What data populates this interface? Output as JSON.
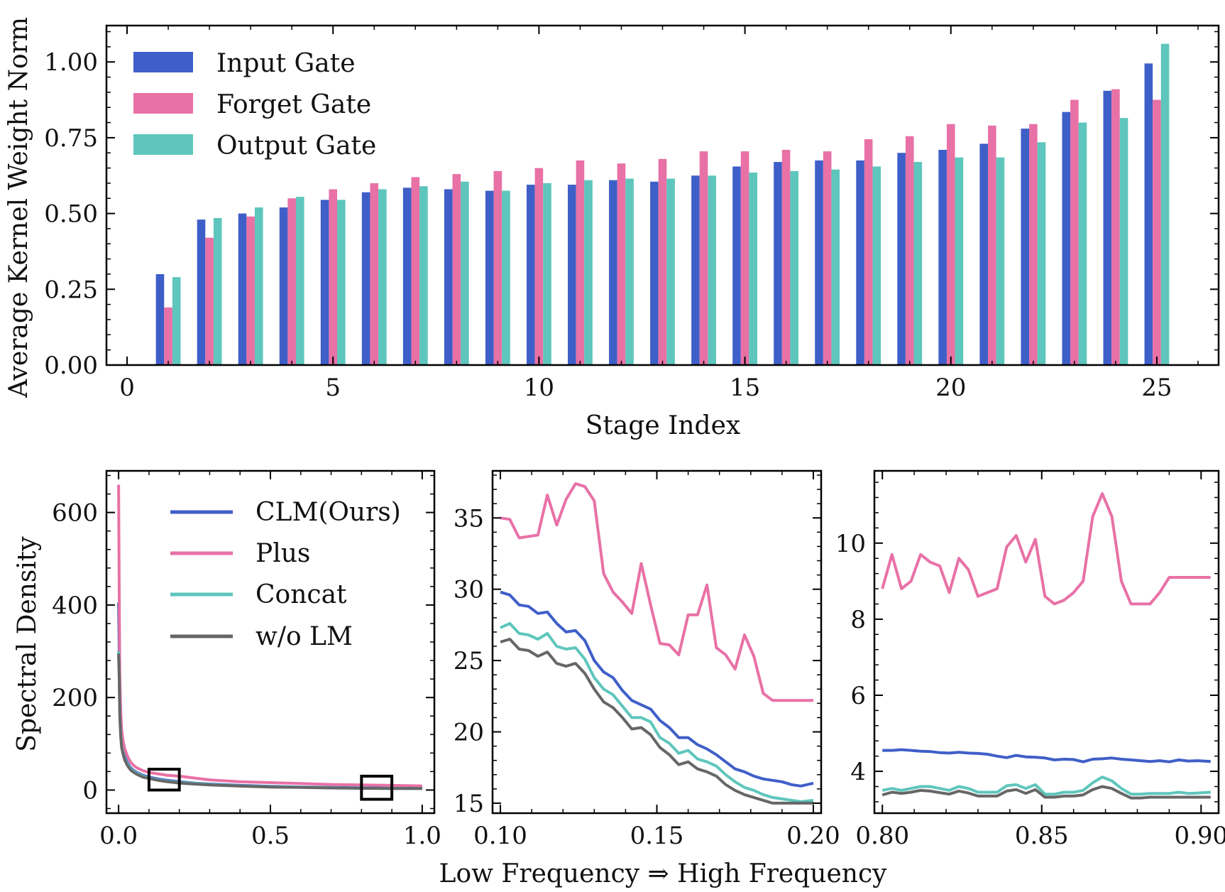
{
  "chart_data": [
    {
      "id": "top",
      "type": "bar",
      "title": "",
      "xlabel": "Stage Index",
      "ylabel": "Average Kernel Weight Norm",
      "xlim": [
        -0.5,
        26.5
      ],
      "ylim": [
        0,
        1.12
      ],
      "xticks": [
        0,
        5,
        10,
        15,
        20,
        25
      ],
      "yticks": [
        0.0,
        0.25,
        0.5,
        0.75,
        1.0
      ],
      "ytick_labels": [
        "0.00",
        "0.25",
        "0.50",
        "0.75",
        "1.00"
      ],
      "legend_position": "top-left",
      "categories": [
        1,
        2,
        3,
        4,
        5,
        6,
        7,
        8,
        9,
        10,
        11,
        12,
        13,
        14,
        15,
        16,
        17,
        18,
        19,
        20,
        21,
        22,
        23,
        24,
        25
      ],
      "series": [
        {
          "name": "Input Gate",
          "color": "#3f5fc8",
          "values": [
            0.3,
            0.48,
            0.5,
            0.52,
            0.545,
            0.57,
            0.585,
            0.58,
            0.575,
            0.595,
            0.595,
            0.61,
            0.605,
            0.625,
            0.655,
            0.67,
            0.675,
            0.675,
            0.7,
            0.71,
            0.73,
            0.78,
            0.835,
            0.905,
            0.995
          ]
        },
        {
          "name": "Forget Gate",
          "color": "#e871a6",
          "values": [
            0.19,
            0.42,
            0.49,
            0.55,
            0.58,
            0.6,
            0.62,
            0.63,
            0.64,
            0.65,
            0.675,
            0.665,
            0.68,
            0.705,
            0.705,
            0.71,
            0.705,
            0.745,
            0.755,
            0.795,
            0.79,
            0.795,
            0.875,
            0.91,
            0.875
          ]
        },
        {
          "name": "Output Gate",
          "color": "#5ec6bc",
          "values": [
            0.29,
            0.485,
            0.52,
            0.555,
            0.545,
            0.58,
            0.59,
            0.605,
            0.575,
            0.6,
            0.61,
            0.615,
            0.615,
            0.625,
            0.635,
            0.64,
            0.645,
            0.655,
            0.67,
            0.685,
            0.685,
            0.735,
            0.8,
            0.815,
            1.06
          ]
        }
      ]
    },
    {
      "id": "bottom-left",
      "type": "line",
      "xlabel": "",
      "ylabel": "Spectral Density",
      "xlim": [
        -0.04,
        1.04
      ],
      "ylim": [
        -50,
        690
      ],
      "xticks": [
        0.0,
        0.5,
        1.0
      ],
      "xtick_labels": [
        "0.0",
        "0.5",
        "1.0"
      ],
      "yticks": [
        0,
        200,
        400,
        600
      ],
      "ytick_labels": [
        "0",
        "200",
        "400",
        "600"
      ],
      "legend_position": "top-right",
      "zoom_boxes": [
        {
          "x": [
            0.1,
            0.2
          ],
          "y": [
            0,
            45
          ]
        },
        {
          "x": [
            0.8,
            0.9
          ],
          "y": [
            -20,
            30
          ]
        }
      ],
      "series": [
        {
          "name": "CLM(Ours)",
          "color": "#3f5fc8",
          "x": [
            0.0,
            0.002,
            0.004,
            0.007,
            0.01,
            0.015,
            0.02,
            0.03,
            0.04,
            0.05,
            0.06,
            0.08,
            0.1,
            0.13,
            0.16,
            0.2,
            0.25,
            0.3,
            0.4,
            0.5,
            0.6,
            0.7,
            0.8,
            0.9,
            1.0
          ],
          "y": [
            405,
            300,
            180,
            130,
            100,
            85,
            72,
            58,
            48,
            42,
            38,
            32,
            28,
            24,
            21,
            18,
            15,
            13,
            10,
            8,
            6.5,
            5.5,
            4.8,
            4.2,
            4.0
          ]
        },
        {
          "name": "Plus",
          "color": "#e871a6",
          "x": [
            0.0,
            0.002,
            0.004,
            0.007,
            0.01,
            0.015,
            0.02,
            0.03,
            0.04,
            0.05,
            0.06,
            0.08,
            0.1,
            0.13,
            0.16,
            0.2,
            0.25,
            0.3,
            0.4,
            0.5,
            0.6,
            0.7,
            0.8,
            0.9,
            1.0
          ],
          "y": [
            660,
            420,
            250,
            170,
            130,
            105,
            90,
            72,
            60,
            53,
            48,
            42,
            38,
            35,
            32,
            30,
            26,
            22,
            18,
            16,
            14,
            12,
            11,
            10,
            9
          ]
        },
        {
          "name": "Concat",
          "color": "#5ec6bc",
          "x": [
            0.0,
            0.002,
            0.004,
            0.007,
            0.01,
            0.015,
            0.02,
            0.03,
            0.04,
            0.05,
            0.06,
            0.08,
            0.1,
            0.13,
            0.16,
            0.2,
            0.25,
            0.3,
            0.4,
            0.5,
            0.6,
            0.7,
            0.8,
            0.9,
            1.0
          ],
          "y": [
            300,
            250,
            165,
            120,
            95,
            80,
            68,
            55,
            45,
            40,
            36,
            30,
            26,
            22,
            19,
            16,
            14,
            12,
            9,
            7,
            6,
            5,
            4,
            3.5,
            3.3
          ]
        },
        {
          "name": "w/o LM",
          "color": "#666666",
          "x": [
            0.0,
            0.002,
            0.004,
            0.007,
            0.01,
            0.015,
            0.02,
            0.03,
            0.04,
            0.05,
            0.06,
            0.08,
            0.1,
            0.13,
            0.16,
            0.2,
            0.25,
            0.3,
            0.4,
            0.5,
            0.6,
            0.7,
            0.8,
            0.9,
            1.0
          ],
          "y": [
            295,
            240,
            160,
            115,
            92,
            77,
            65,
            52,
            43,
            38,
            34,
            28,
            25,
            21,
            18,
            15,
            13,
            11,
            8.5,
            6.5,
            5.5,
            4.5,
            3.8,
            3.4,
            3.2
          ]
        }
      ]
    },
    {
      "id": "bottom-middle",
      "type": "line",
      "xlabel": "",
      "ylabel": "",
      "xlim": [
        0.0975,
        0.2025
      ],
      "ylim": [
        14.3,
        38.3
      ],
      "xticks": [
        0.1,
        0.15,
        0.2
      ],
      "xtick_labels": [
        "0.10",
        "0.15",
        "0.20"
      ],
      "yticks": [
        15,
        20,
        25,
        30,
        35
      ],
      "ytick_labels": [
        "15",
        "20",
        "25",
        "30",
        "35"
      ],
      "series": [
        {
          "name": "CLM(Ours)",
          "color": "#3f5fc8",
          "x": [
            0.1,
            0.103,
            0.106,
            0.109,
            0.112,
            0.115,
            0.118,
            0.121,
            0.124,
            0.127,
            0.13,
            0.133,
            0.136,
            0.139,
            0.142,
            0.145,
            0.148,
            0.151,
            0.154,
            0.157,
            0.16,
            0.163,
            0.166,
            0.169,
            0.172,
            0.175,
            0.178,
            0.181,
            0.184,
            0.187,
            0.19,
            0.193,
            0.196,
            0.2
          ],
          "y": [
            29.8,
            29.6,
            28.9,
            28.8,
            28.3,
            28.4,
            27.6,
            27.0,
            27.1,
            26.4,
            25.0,
            24.2,
            23.8,
            22.9,
            22.2,
            21.9,
            21.6,
            20.8,
            20.3,
            19.6,
            19.6,
            19.1,
            18.8,
            18.4,
            17.9,
            17.4,
            17.2,
            16.9,
            16.7,
            16.6,
            16.5,
            16.3,
            16.2,
            16.4
          ]
        },
        {
          "name": "Plus",
          "color": "#e871a6",
          "x": [
            0.1,
            0.103,
            0.106,
            0.109,
            0.112,
            0.115,
            0.118,
            0.121,
            0.124,
            0.127,
            0.13,
            0.133,
            0.136,
            0.139,
            0.142,
            0.145,
            0.148,
            0.151,
            0.154,
            0.157,
            0.16,
            0.163,
            0.166,
            0.169,
            0.172,
            0.175,
            0.178,
            0.181,
            0.184,
            0.187,
            0.19,
            0.193,
            0.196,
            0.2
          ],
          "y": [
            35.0,
            34.9,
            33.6,
            33.7,
            33.8,
            36.6,
            34.5,
            36.3,
            37.4,
            37.2,
            36.2,
            31.1,
            29.8,
            29.1,
            28.3,
            31.8,
            28.9,
            26.2,
            26.1,
            25.4,
            28.2,
            28.2,
            30.3,
            25.9,
            25.4,
            24.4,
            26.8,
            25.3,
            22.7,
            22.2,
            22.2,
            22.2,
            22.2,
            22.2
          ]
        },
        {
          "name": "Concat",
          "color": "#5ec6bc",
          "x": [
            0.1,
            0.103,
            0.106,
            0.109,
            0.112,
            0.115,
            0.118,
            0.121,
            0.124,
            0.127,
            0.13,
            0.133,
            0.136,
            0.139,
            0.142,
            0.145,
            0.148,
            0.151,
            0.154,
            0.157,
            0.16,
            0.163,
            0.166,
            0.169,
            0.172,
            0.175,
            0.178,
            0.181,
            0.184,
            0.187,
            0.19,
            0.193,
            0.196,
            0.2
          ],
          "y": [
            27.3,
            27.6,
            26.9,
            26.8,
            26.5,
            26.9,
            26.0,
            25.8,
            25.9,
            25.1,
            23.8,
            23.0,
            22.6,
            21.8,
            21.0,
            21.0,
            20.7,
            19.6,
            19.2,
            18.5,
            18.7,
            18.1,
            17.9,
            17.6,
            17.0,
            16.5,
            16.1,
            15.9,
            15.6,
            15.4,
            15.3,
            15.2,
            15.1,
            15.2
          ]
        },
        {
          "name": "w/o LM",
          "color": "#666666",
          "x": [
            0.1,
            0.103,
            0.106,
            0.109,
            0.112,
            0.115,
            0.118,
            0.121,
            0.124,
            0.127,
            0.13,
            0.133,
            0.136,
            0.139,
            0.142,
            0.145,
            0.148,
            0.151,
            0.154,
            0.157,
            0.16,
            0.163,
            0.166,
            0.169,
            0.172,
            0.175,
            0.178,
            0.181,
            0.184,
            0.187,
            0.19,
            0.193,
            0.196,
            0.2
          ],
          "y": [
            26.3,
            26.5,
            25.8,
            25.7,
            25.3,
            25.6,
            24.8,
            24.6,
            24.8,
            24.1,
            23.0,
            22.1,
            21.7,
            21.0,
            20.2,
            20.3,
            19.8,
            18.9,
            18.4,
            17.7,
            17.9,
            17.4,
            17.2,
            16.9,
            16.3,
            15.9,
            15.6,
            15.4,
            15.2,
            15.0,
            15.0,
            15.0,
            15.0,
            15.0
          ]
        }
      ]
    },
    {
      "id": "bottom-right",
      "type": "line",
      "xlabel": "Low Frequency ⇒ High Frequency",
      "ylabel": "",
      "xlim": [
        0.7975,
        0.9055
      ],
      "ylim": [
        2.9,
        11.9
      ],
      "xticks": [
        0.8,
        0.85,
        0.9
      ],
      "xtick_labels": [
        "0.80",
        "0.85",
        "0.90"
      ],
      "yticks": [
        4,
        6,
        8,
        10
      ],
      "ytick_labels": [
        "4",
        "6",
        "8",
        "10"
      ],
      "series": [
        {
          "name": "CLM(Ours)",
          "color": "#3f5fc8",
          "x": [
            0.8,
            0.803,
            0.806,
            0.809,
            0.812,
            0.815,
            0.818,
            0.821,
            0.824,
            0.827,
            0.83,
            0.833,
            0.836,
            0.839,
            0.842,
            0.845,
            0.848,
            0.851,
            0.854,
            0.857,
            0.86,
            0.863,
            0.866,
            0.869,
            0.872,
            0.875,
            0.878,
            0.881,
            0.884,
            0.887,
            0.89,
            0.893,
            0.896,
            0.899,
            0.903
          ],
          "y": [
            4.55,
            4.55,
            4.57,
            4.55,
            4.53,
            4.52,
            4.49,
            4.48,
            4.5,
            4.48,
            4.47,
            4.45,
            4.4,
            4.36,
            4.42,
            4.38,
            4.37,
            4.35,
            4.3,
            4.32,
            4.31,
            4.25,
            4.32,
            4.33,
            4.35,
            4.32,
            4.3,
            4.28,
            4.26,
            4.28,
            4.25,
            4.3,
            4.27,
            4.28,
            4.26
          ]
        },
        {
          "name": "Plus",
          "color": "#e871a6",
          "x": [
            0.8,
            0.803,
            0.806,
            0.809,
            0.812,
            0.815,
            0.818,
            0.821,
            0.824,
            0.827,
            0.83,
            0.833,
            0.836,
            0.839,
            0.842,
            0.845,
            0.848,
            0.851,
            0.854,
            0.857,
            0.86,
            0.863,
            0.866,
            0.869,
            0.872,
            0.875,
            0.878,
            0.881,
            0.884,
            0.887,
            0.89,
            0.893,
            0.896,
            0.899,
            0.903
          ],
          "y": [
            8.8,
            9.7,
            8.8,
            9.0,
            9.7,
            9.5,
            9.4,
            8.7,
            9.6,
            9.3,
            8.6,
            8.7,
            8.8,
            9.9,
            10.2,
            9.5,
            10.1,
            8.6,
            8.4,
            8.5,
            8.7,
            9.0,
            10.7,
            11.3,
            10.7,
            9.0,
            8.4,
            8.4,
            8.4,
            8.7,
            9.1,
            9.1,
            9.1,
            9.1,
            9.1
          ]
        },
        {
          "name": "Concat",
          "color": "#5ec6bc",
          "x": [
            0.8,
            0.803,
            0.806,
            0.809,
            0.812,
            0.815,
            0.818,
            0.821,
            0.824,
            0.827,
            0.83,
            0.833,
            0.836,
            0.839,
            0.842,
            0.845,
            0.848,
            0.851,
            0.854,
            0.857,
            0.86,
            0.863,
            0.866,
            0.869,
            0.872,
            0.875,
            0.878,
            0.881,
            0.884,
            0.887,
            0.89,
            0.893,
            0.896,
            0.899,
            0.903
          ],
          "y": [
            3.5,
            3.55,
            3.5,
            3.55,
            3.6,
            3.6,
            3.55,
            3.5,
            3.6,
            3.55,
            3.45,
            3.45,
            3.45,
            3.62,
            3.65,
            3.55,
            3.65,
            3.4,
            3.4,
            3.45,
            3.45,
            3.5,
            3.7,
            3.85,
            3.75,
            3.55,
            3.4,
            3.4,
            3.42,
            3.42,
            3.42,
            3.45,
            3.42,
            3.43,
            3.45
          ]
        },
        {
          "name": "w/o LM",
          "color": "#666666",
          "x": [
            0.8,
            0.803,
            0.806,
            0.809,
            0.812,
            0.815,
            0.818,
            0.821,
            0.824,
            0.827,
            0.83,
            0.833,
            0.836,
            0.839,
            0.842,
            0.845,
            0.848,
            0.851,
            0.854,
            0.857,
            0.86,
            0.863,
            0.866,
            0.869,
            0.872,
            0.875,
            0.878,
            0.881,
            0.884,
            0.887,
            0.89,
            0.893,
            0.896,
            0.899,
            0.903
          ],
          "y": [
            3.38,
            3.45,
            3.42,
            3.45,
            3.5,
            3.48,
            3.44,
            3.4,
            3.48,
            3.43,
            3.35,
            3.35,
            3.35,
            3.48,
            3.52,
            3.42,
            3.52,
            3.32,
            3.32,
            3.35,
            3.35,
            3.38,
            3.52,
            3.6,
            3.55,
            3.42,
            3.3,
            3.3,
            3.32,
            3.32,
            3.32,
            3.32,
            3.32,
            3.32,
            3.32
          ]
        }
      ]
    }
  ]
}
